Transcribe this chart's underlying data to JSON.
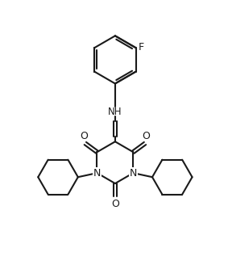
{
  "background_color": "#ffffff",
  "line_color": "#1a1a1a",
  "text_color": "#1a1a1a",
  "line_width": 1.5,
  "figsize": [
    2.83,
    3.28
  ],
  "dpi": 100,
  "xlim": [
    0,
    10
  ],
  "ylim": [
    0,
    11.6
  ]
}
